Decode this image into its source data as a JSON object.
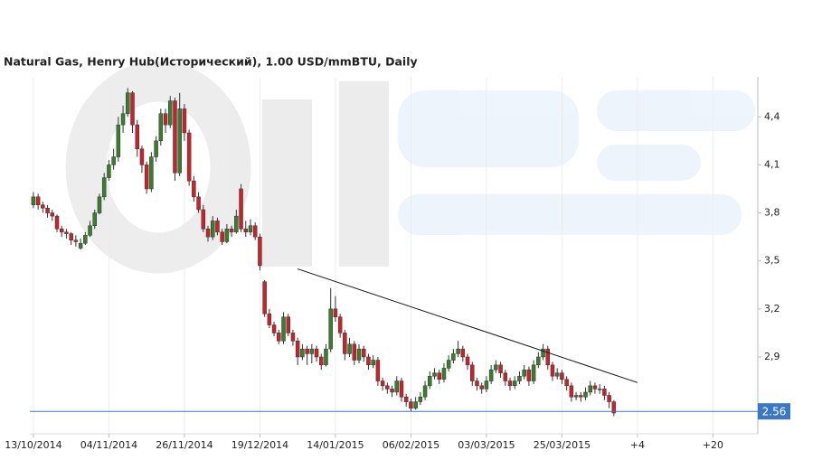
{
  "chart_data": {
    "type": "candlestick",
    "title": "Natural Gas, Henry Hub(Исторический), 1.00 USD/mmBTU, Daily",
    "up_color": "#3a7d2c",
    "down_color": "#c8232b",
    "xlim": [
      -0.75,
      153.5
    ],
    "xticks": [
      {
        "value": 0,
        "label": "13/10/2014"
      },
      {
        "value": 16,
        "label": "04/11/2014"
      },
      {
        "value": 32,
        "label": "26/11/2014"
      },
      {
        "value": 48,
        "label": "19/12/2014"
      },
      {
        "value": 64,
        "label": "14/01/2015"
      },
      {
        "value": 80,
        "label": "06/02/2015"
      },
      {
        "value": 96,
        "label": "03/03/2015"
      },
      {
        "value": 112,
        "label": "25/03/2015"
      },
      {
        "value": 128,
        "label": "+4"
      },
      {
        "value": 144,
        "label": "+20"
      }
    ],
    "ylim": [
      2.42,
      4.65
    ],
    "yticks": [
      {
        "value": 2.9,
        "label": "2,9"
      },
      {
        "value": 3.2,
        "label": "3,2"
      },
      {
        "value": 3.5,
        "label": "3,5"
      },
      {
        "value": 3.8,
        "label": "3,8"
      },
      {
        "value": 4.1,
        "label": "4,1"
      },
      {
        "value": 4.4,
        "label": "4,4"
      }
    ],
    "grid": true,
    "last_price": 2.56,
    "last_price_color": "#3b78c4",
    "trendline": {
      "x": [
        56,
        128
      ],
      "y": [
        3.45,
        2.74
      ]
    },
    "ohlc": [
      [
        3.85,
        3.93,
        3.83,
        3.9
      ],
      [
        3.9,
        3.92,
        3.82,
        3.85
      ],
      [
        3.85,
        3.87,
        3.8,
        3.83
      ],
      [
        3.83,
        3.85,
        3.77,
        3.8
      ],
      [
        3.8,
        3.82,
        3.75,
        3.78
      ],
      [
        3.78,
        3.79,
        3.68,
        3.7
      ],
      [
        3.7,
        3.72,
        3.65,
        3.68
      ],
      [
        3.68,
        3.7,
        3.64,
        3.67
      ],
      [
        3.67,
        3.68,
        3.6,
        3.63
      ],
      [
        3.63,
        3.66,
        3.59,
        3.62
      ],
      [
        3.58,
        3.64,
        3.57,
        3.61
      ],
      [
        3.61,
        3.68,
        3.6,
        3.66
      ],
      [
        3.66,
        3.75,
        3.65,
        3.72
      ],
      [
        3.72,
        3.82,
        3.7,
        3.8
      ],
      [
        3.8,
        3.92,
        3.79,
        3.9
      ],
      [
        3.9,
        4.05,
        3.88,
        4.02
      ],
      [
        4.02,
        4.13,
        4.0,
        4.1
      ],
      [
        4.1,
        4.2,
        4.07,
        4.15
      ],
      [
        4.15,
        4.4,
        4.12,
        4.35
      ],
      [
        4.35,
        4.47,
        4.3,
        4.42
      ],
      [
        4.42,
        4.58,
        4.4,
        4.55
      ],
      [
        4.55,
        4.56,
        4.3,
        4.35
      ],
      [
        4.35,
        4.38,
        4.15,
        4.2
      ],
      [
        4.2,
        4.22,
        4.05,
        4.1
      ],
      [
        4.1,
        4.12,
        3.92,
        3.95
      ],
      [
        3.95,
        4.18,
        3.93,
        4.15
      ],
      [
        4.15,
        4.28,
        4.12,
        4.25
      ],
      [
        4.25,
        4.45,
        4.22,
        4.42
      ],
      [
        4.42,
        4.45,
        4.3,
        4.35
      ],
      [
        4.35,
        4.53,
        4.33,
        4.5
      ],
      [
        4.5,
        4.52,
        4.0,
        4.05
      ],
      [
        4.05,
        4.55,
        4.03,
        4.45
      ],
      [
        4.45,
        4.48,
        4.25,
        4.3
      ],
      [
        4.3,
        4.32,
        3.97,
        4.0
      ],
      [
        4.0,
        4.03,
        3.87,
        3.9
      ],
      [
        3.9,
        3.93,
        3.8,
        3.82
      ],
      [
        3.82,
        3.85,
        3.68,
        3.7
      ],
      [
        3.7,
        3.72,
        3.62,
        3.65
      ],
      [
        3.65,
        3.78,
        3.63,
        3.75
      ],
      [
        3.75,
        3.77,
        3.66,
        3.68
      ],
      [
        3.68,
        3.7,
        3.6,
        3.62
      ],
      [
        3.62,
        3.73,
        3.61,
        3.7
      ],
      [
        3.7,
        3.72,
        3.65,
        3.68
      ],
      [
        3.68,
        3.82,
        3.67,
        3.78
      ],
      [
        3.95,
        3.98,
        3.68,
        3.7
      ],
      [
        3.7,
        3.75,
        3.65,
        3.68
      ],
      [
        3.68,
        3.76,
        3.66,
        3.72
      ],
      [
        3.72,
        3.74,
        3.63,
        3.65
      ],
      [
        3.65,
        3.67,
        3.44,
        3.47
      ],
      [
        3.37,
        3.38,
        3.15,
        3.17
      ],
      [
        3.17,
        3.2,
        3.08,
        3.1
      ],
      [
        3.1,
        3.12,
        3.03,
        3.05
      ],
      [
        3.05,
        3.07,
        2.98,
        3.0
      ],
      [
        3.0,
        3.18,
        2.98,
        3.15
      ],
      [
        3.15,
        3.17,
        3.03,
        3.05
      ],
      [
        3.05,
        3.07,
        2.97,
        3.0
      ],
      [
        3.0,
        3.02,
        2.85,
        2.9
      ],
      [
        2.9,
        2.98,
        2.88,
        2.95
      ],
      [
        2.95,
        2.97,
        2.85,
        2.92
      ],
      [
        2.92,
        2.98,
        2.86,
        2.95
      ],
      [
        2.95,
        2.97,
        2.87,
        2.9
      ],
      [
        2.9,
        2.92,
        2.82,
        2.85
      ],
      [
        2.85,
        2.98,
        2.84,
        2.95
      ],
      [
        2.95,
        3.33,
        2.93,
        3.2
      ],
      [
        3.2,
        3.28,
        3.12,
        3.15
      ],
      [
        3.15,
        3.17,
        3.02,
        3.05
      ],
      [
        3.05,
        3.07,
        2.88,
        2.92
      ],
      [
        2.92,
        3.02,
        2.9,
        2.98
      ],
      [
        2.98,
        3.0,
        2.85,
        2.88
      ],
      [
        2.88,
        2.98,
        2.86,
        2.95
      ],
      [
        2.95,
        2.97,
        2.87,
        2.9
      ],
      [
        2.9,
        2.92,
        2.82,
        2.85
      ],
      [
        2.85,
        2.91,
        2.83,
        2.88
      ],
      [
        2.88,
        2.9,
        2.72,
        2.75
      ],
      [
        2.75,
        2.77,
        2.69,
        2.72
      ],
      [
        2.72,
        2.74,
        2.67,
        2.7
      ],
      [
        2.7,
        2.72,
        2.65,
        2.68
      ],
      [
        2.68,
        2.78,
        2.66,
        2.75
      ],
      [
        2.75,
        2.77,
        2.62,
        2.65
      ],
      [
        2.65,
        2.67,
        2.59,
        2.62
      ],
      [
        2.62,
        2.64,
        2.56,
        2.58
      ],
      [
        2.58,
        2.65,
        2.57,
        2.62
      ],
      [
        2.62,
        2.68,
        2.6,
        2.65
      ],
      [
        2.65,
        2.75,
        2.63,
        2.72
      ],
      [
        2.72,
        2.81,
        2.7,
        2.78
      ],
      [
        2.78,
        2.83,
        2.76,
        2.8
      ],
      [
        2.8,
        2.82,
        2.73,
        2.76
      ],
      [
        2.76,
        2.86,
        2.74,
        2.83
      ],
      [
        2.83,
        2.91,
        2.81,
        2.88
      ],
      [
        2.88,
        2.95,
        2.86,
        2.92
      ],
      [
        2.92,
        3.0,
        2.9,
        2.95
      ],
      [
        2.95,
        2.97,
        2.87,
        2.9
      ],
      [
        2.9,
        2.92,
        2.82,
        2.85
      ],
      [
        2.85,
        2.87,
        2.72,
        2.75
      ],
      [
        2.75,
        2.77,
        2.69,
        2.72
      ],
      [
        2.72,
        2.74,
        2.67,
        2.7
      ],
      [
        2.7,
        2.78,
        2.68,
        2.75
      ],
      [
        2.75,
        2.85,
        2.73,
        2.82
      ],
      [
        2.82,
        2.88,
        2.8,
        2.85
      ],
      [
        2.85,
        2.87,
        2.77,
        2.8
      ],
      [
        2.8,
        2.82,
        2.72,
        2.75
      ],
      [
        2.75,
        2.77,
        2.69,
        2.72
      ],
      [
        2.72,
        2.78,
        2.7,
        2.75
      ],
      [
        2.75,
        2.81,
        2.73,
        2.78
      ],
      [
        2.78,
        2.85,
        2.76,
        2.82
      ],
      [
        2.82,
        2.84,
        2.72,
        2.75
      ],
      [
        2.75,
        2.88,
        2.73,
        2.85
      ],
      [
        2.85,
        2.93,
        2.83,
        2.9
      ],
      [
        2.9,
        2.98,
        2.88,
        2.95
      ],
      [
        2.95,
        2.97,
        2.82,
        2.85
      ],
      [
        2.85,
        2.87,
        2.75,
        2.78
      ],
      [
        2.78,
        2.83,
        2.76,
        2.8
      ],
      [
        2.8,
        2.82,
        2.73,
        2.76
      ],
      [
        2.76,
        2.78,
        2.69,
        2.72
      ],
      [
        2.72,
        2.74,
        2.62,
        2.65
      ],
      [
        2.65,
        2.68,
        2.63,
        2.66
      ],
      [
        2.66,
        2.68,
        2.62,
        2.65
      ],
      [
        2.65,
        2.71,
        2.63,
        2.68
      ],
      [
        2.68,
        2.75,
        2.66,
        2.72
      ],
      [
        2.72,
        2.74,
        2.67,
        2.7
      ],
      [
        2.7,
        2.73,
        2.67,
        2.7
      ],
      [
        2.7,
        2.72,
        2.63,
        2.66
      ],
      [
        2.66,
        2.68,
        2.58,
        2.62
      ],
      [
        2.62,
        2.63,
        2.53,
        2.55
      ]
    ]
  }
}
